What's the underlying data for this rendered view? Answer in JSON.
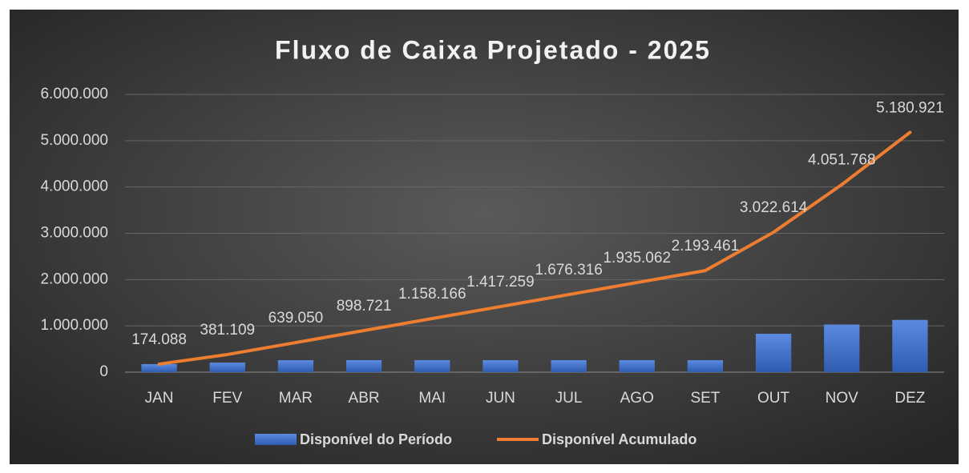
{
  "chart_data": {
    "type": "combo",
    "title": "Fluxo de Caixa Projetado - 2025",
    "categories": [
      "JAN",
      "FEV",
      "MAR",
      "ABR",
      "MAI",
      "JUN",
      "JUL",
      "AGO",
      "SET",
      "OUT",
      "NOV",
      "DEZ"
    ],
    "series": [
      {
        "name": "Disponível do Período",
        "type": "bar",
        "color": "#4472c4",
        "values": [
          174088,
          207021,
          257941,
          259671,
          259445,
          259093,
          259057,
          258746,
          258399,
          829153,
          1029154,
          1129153
        ]
      },
      {
        "name": "Disponível Acumulado",
        "type": "line",
        "color": "#ed7d31",
        "values": [
          174088,
          381109,
          639050,
          898721,
          1158166,
          1417259,
          1676316,
          1935062,
          2193461,
          3022614,
          4051768,
          5180921
        ],
        "value_labels": [
          "174.088",
          "381.109",
          "639.050",
          "898.721",
          "1.158.166",
          "1.417.259",
          "1.676.316",
          "1.935.062",
          "2.193.461",
          "3.022.614",
          "4.051.768",
          "5.180.921"
        ]
      }
    ],
    "ylim": [
      0,
      6000000
    ],
    "yticks": [
      0,
      {
        "value": 1000000,
        "label": "1.000.000"
      },
      {
        "value": 2000000,
        "label": "2.000.000"
      },
      {
        "value": 3000000,
        "label": "3.000.000"
      },
      {
        "value": 4000000,
        "label": "4.000.000"
      },
      {
        "value": 5000000,
        "label": "5.000.000"
      },
      {
        "value": 6000000,
        "label": "6.000.000"
      }
    ],
    "grid": true,
    "legend": "bottom"
  }
}
